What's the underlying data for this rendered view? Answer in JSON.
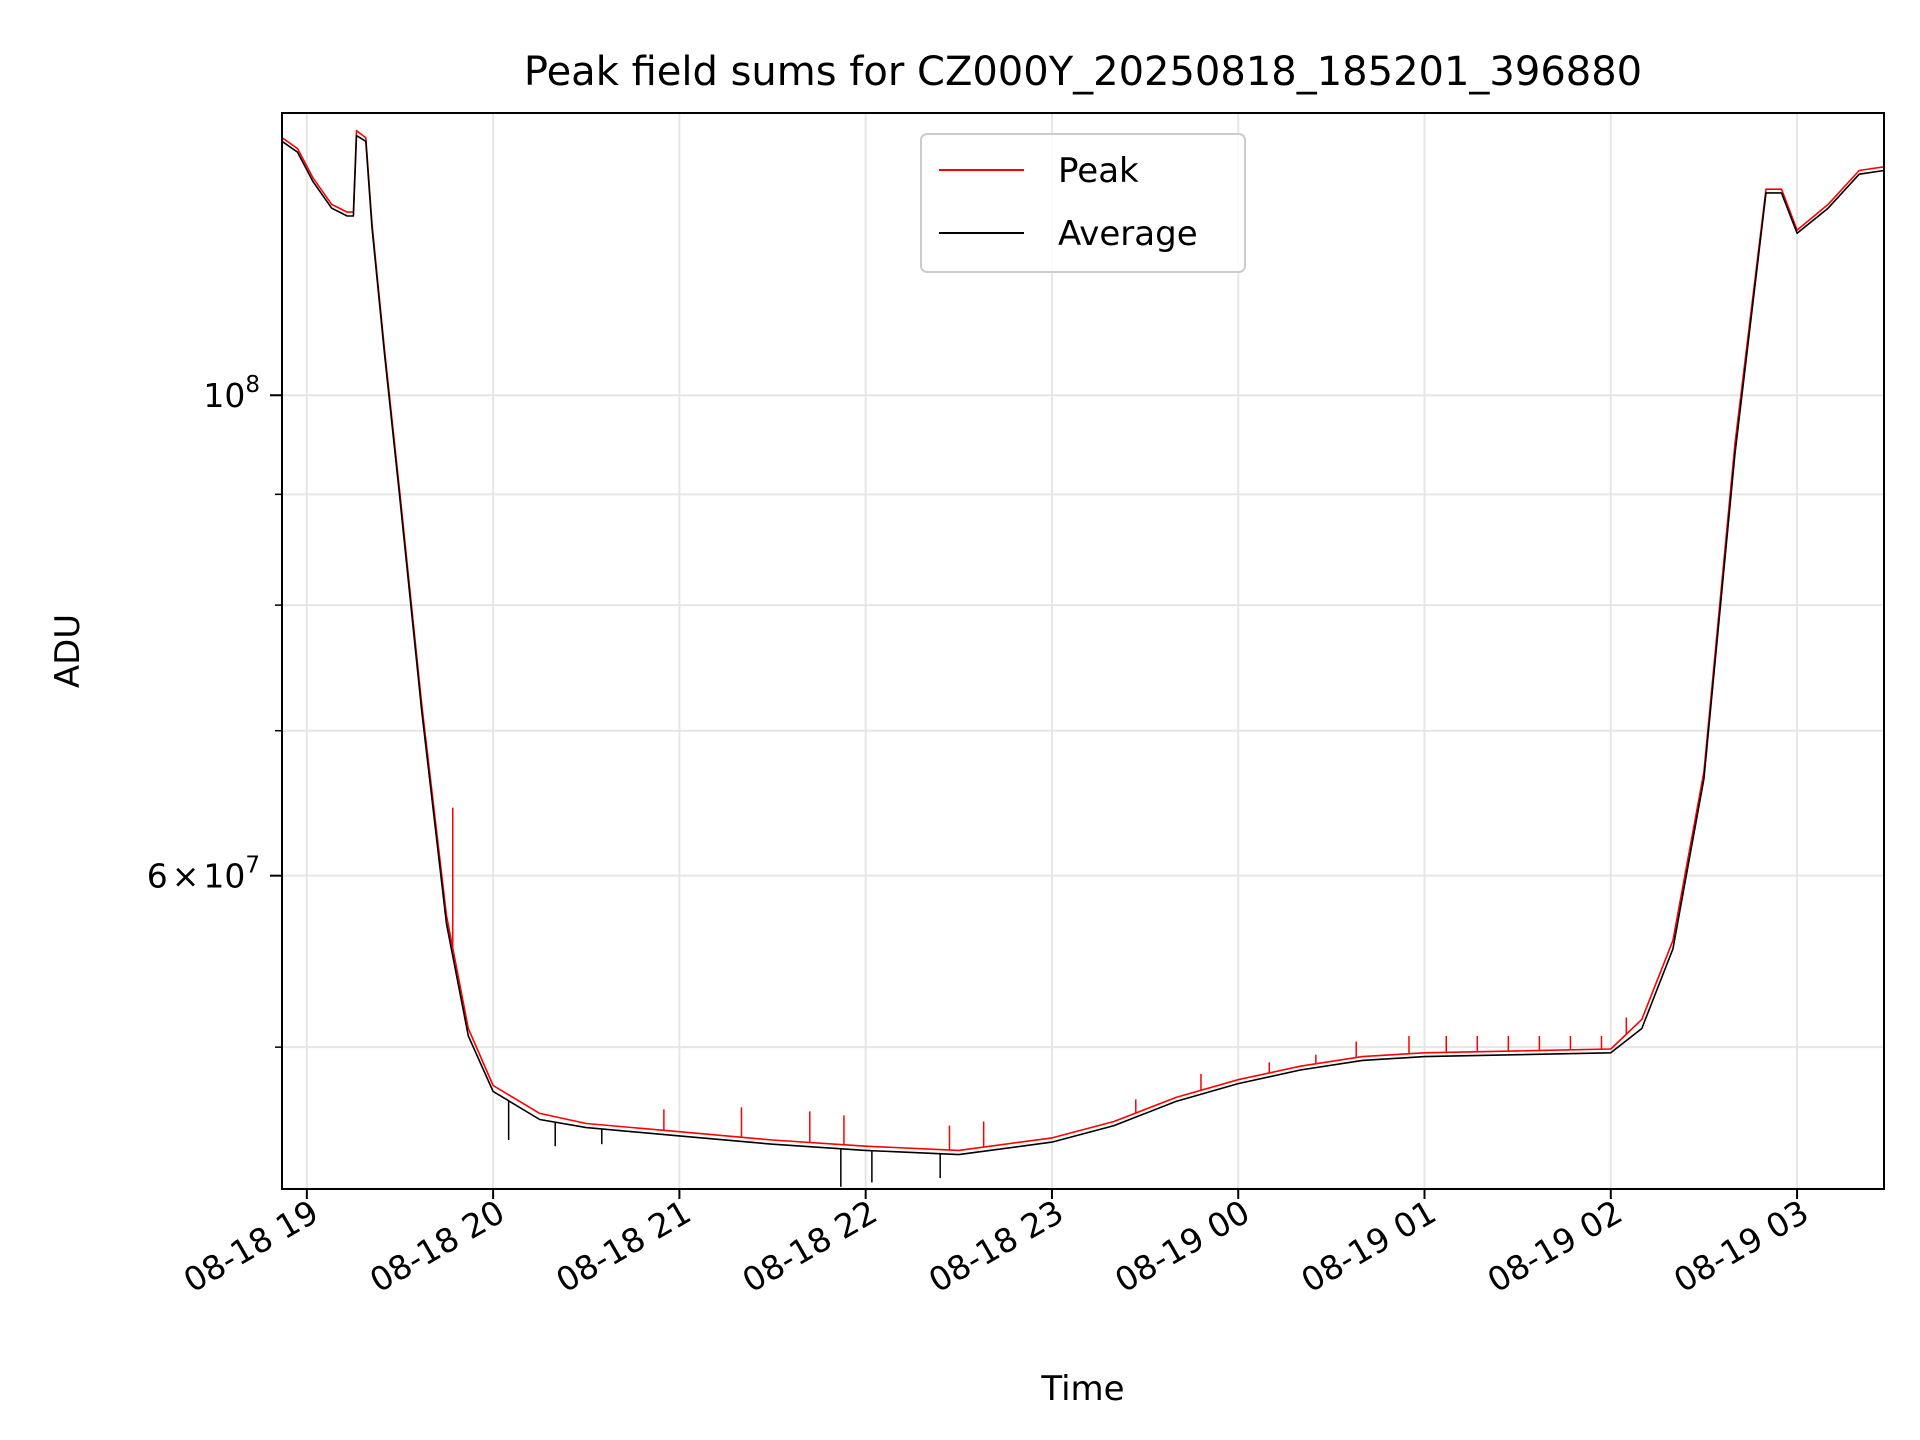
{
  "chart_data": {
    "type": "line",
    "title": "Peak field sums for CZ000Y_20250818_185201_396880",
    "xlabel": "Time",
    "ylabel": "ADU",
    "yscale": "log",
    "xlim": [
      "2025-08-18 18:52",
      "2025-08-19 03:28"
    ],
    "ylim": [
      43000000,
      135000000
    ],
    "x_ticks": [
      {
        "t": "2025-08-18 19:00",
        "label": "08-18 19"
      },
      {
        "t": "2025-08-18 20:00",
        "label": "08-18 20"
      },
      {
        "t": "2025-08-18 21:00",
        "label": "08-18 21"
      },
      {
        "t": "2025-08-18 22:00",
        "label": "08-18 22"
      },
      {
        "t": "2025-08-18 23:00",
        "label": "08-18 23"
      },
      {
        "t": "2025-08-19 00:00",
        "label": "08-19 00"
      },
      {
        "t": "2025-08-19 01:00",
        "label": "08-19 01"
      },
      {
        "t": "2025-08-19 02:00",
        "label": "08-19 02"
      },
      {
        "t": "2025-08-19 03:00",
        "label": "08-19 03"
      }
    ],
    "y_major_ticks": [
      {
        "value": 60000000,
        "label_coef": "6",
        "label_base": "10",
        "label_exp": "7",
        "label_times": "×"
      },
      {
        "value": 100000000,
        "label_coef": "",
        "label_base": "10",
        "label_exp": "8",
        "label_times": ""
      }
    ],
    "y_minor_ticks": [
      50000000,
      70000000,
      80000000,
      90000000
    ],
    "grid": true,
    "legend": "upper center",
    "series": [
      {
        "name": "Peak",
        "color": "#ff0000",
        "points": [
          [
            "2025-08-18 18:52",
            131500000
          ],
          [
            "2025-08-18 18:57",
            130000000
          ],
          [
            "2025-08-18 19:02",
            126000000
          ],
          [
            "2025-08-18 19:08",
            122500000
          ],
          [
            "2025-08-18 19:13",
            121500000
          ],
          [
            "2025-08-18 19:15",
            121500000
          ],
          [
            "2025-08-18 19:16",
            132500000
          ],
          [
            "2025-08-18 19:19",
            131500000
          ],
          [
            "2025-08-18 19:21",
            120000000
          ],
          [
            "2025-08-18 19:25",
            105000000
          ],
          [
            "2025-08-18 19:30",
            90000000
          ],
          [
            "2025-08-18 19:37",
            72000000
          ],
          [
            "2025-08-18 19:45",
            57500000
          ],
          [
            "2025-08-18 19:52",
            51000000
          ],
          [
            "2025-08-18 20:00",
            48000000
          ],
          [
            "2025-08-18 20:15",
            46600000
          ],
          [
            "2025-08-18 20:30",
            46100000
          ],
          [
            "2025-08-18 21:00",
            45700000
          ],
          [
            "2025-08-18 21:30",
            45300000
          ],
          [
            "2025-08-18 22:00",
            45000000
          ],
          [
            "2025-08-18 22:30",
            44800000
          ],
          [
            "2025-08-18 23:00",
            45400000
          ],
          [
            "2025-08-18 23:20",
            46200000
          ],
          [
            "2025-08-18 23:40",
            47400000
          ],
          [
            "2025-08-19 00:00",
            48300000
          ],
          [
            "2025-08-19 00:20",
            49000000
          ],
          [
            "2025-08-19 00:40",
            49500000
          ],
          [
            "2025-08-19 01:00",
            49700000
          ],
          [
            "2025-08-19 01:30",
            49800000
          ],
          [
            "2025-08-19 02:00",
            49900000
          ],
          [
            "2025-08-19 02:10",
            51500000
          ],
          [
            "2025-08-19 02:20",
            56000000
          ],
          [
            "2025-08-19 02:30",
            67000000
          ],
          [
            "2025-08-19 02:40",
            95000000
          ],
          [
            "2025-08-19 02:50",
            124500000
          ],
          [
            "2025-08-19 02:55",
            124500000
          ],
          [
            "2025-08-19 03:00",
            119200000
          ],
          [
            "2025-08-19 03:10",
            122500000
          ],
          [
            "2025-08-19 03:20",
            127000000
          ],
          [
            "2025-08-19 03:28",
            127500000
          ]
        ],
        "spikes": [
          [
            "2025-08-18 19:47",
            64500000
          ],
          [
            "2025-08-18 20:55",
            46800000
          ],
          [
            "2025-08-18 21:20",
            46900000
          ],
          [
            "2025-08-18 21:42",
            46700000
          ],
          [
            "2025-08-18 21:53",
            46500000
          ],
          [
            "2025-08-18 22:27",
            46000000
          ],
          [
            "2025-08-18 22:38",
            46200000
          ],
          [
            "2025-08-18 23:27",
            47300000
          ],
          [
            "2025-08-18 23:48",
            48600000
          ],
          [
            "2025-08-19 00:10",
            49200000
          ],
          [
            "2025-08-19 00:25",
            49600000
          ],
          [
            "2025-08-19 00:38",
            50300000
          ],
          [
            "2025-08-19 00:55",
            50600000
          ],
          [
            "2025-08-19 01:07",
            50600000
          ],
          [
            "2025-08-19 01:17",
            50600000
          ],
          [
            "2025-08-19 01:27",
            50600000
          ],
          [
            "2025-08-19 01:37",
            50600000
          ],
          [
            "2025-08-19 01:47",
            50600000
          ],
          [
            "2025-08-19 01:57",
            50600000
          ],
          [
            "2025-08-19 02:05",
            51600000
          ]
        ]
      },
      {
        "name": "Average",
        "color": "#000000",
        "points": [
          [
            "2025-08-18 18:52",
            131000000
          ],
          [
            "2025-08-18 18:57",
            129500000
          ],
          [
            "2025-08-18 19:02",
            125500000
          ],
          [
            "2025-08-18 19:08",
            122000000
          ],
          [
            "2025-08-18 19:13",
            121000000
          ],
          [
            "2025-08-18 19:15",
            121000000
          ],
          [
            "2025-08-18 19:16",
            131800000
          ],
          [
            "2025-08-18 19:19",
            131000000
          ],
          [
            "2025-08-18 19:21",
            119500000
          ],
          [
            "2025-08-18 19:25",
            104500000
          ],
          [
            "2025-08-18 19:30",
            89500000
          ],
          [
            "2025-08-18 19:37",
            71500000
          ],
          [
            "2025-08-18 19:45",
            57000000
          ],
          [
            "2025-08-18 19:52",
            50600000
          ],
          [
            "2025-08-18 20:00",
            47700000
          ],
          [
            "2025-08-18 20:15",
            46300000
          ],
          [
            "2025-08-18 20:30",
            45900000
          ],
          [
            "2025-08-18 21:00",
            45500000
          ],
          [
            "2025-08-18 21:30",
            45100000
          ],
          [
            "2025-08-18 22:00",
            44800000
          ],
          [
            "2025-08-18 22:30",
            44600000
          ],
          [
            "2025-08-18 23:00",
            45200000
          ],
          [
            "2025-08-18 23:20",
            46000000
          ],
          [
            "2025-08-18 23:40",
            47200000
          ],
          [
            "2025-08-19 00:00",
            48100000
          ],
          [
            "2025-08-19 00:20",
            48800000
          ],
          [
            "2025-08-19 00:40",
            49300000
          ],
          [
            "2025-08-19 01:00",
            49500000
          ],
          [
            "2025-08-19 01:30",
            49600000
          ],
          [
            "2025-08-19 02:00",
            49700000
          ],
          [
            "2025-08-19 02:10",
            51000000
          ],
          [
            "2025-08-19 02:20",
            55500000
          ],
          [
            "2025-08-19 02:30",
            66500000
          ],
          [
            "2025-08-19 02:40",
            94000000
          ],
          [
            "2025-08-19 02:50",
            124000000
          ],
          [
            "2025-08-19 02:55",
            124000000
          ],
          [
            "2025-08-19 03:00",
            118800000
          ],
          [
            "2025-08-19 03:10",
            122000000
          ],
          [
            "2025-08-19 03:20",
            126500000
          ],
          [
            "2025-08-19 03:28",
            127000000
          ]
        ],
        "dips": [
          [
            "2025-08-18 20:05",
            45300000
          ],
          [
            "2025-08-18 20:20",
            45000000
          ],
          [
            "2025-08-18 20:35",
            45100000
          ],
          [
            "2025-08-18 21:52",
            43100000
          ],
          [
            "2025-08-18 22:02",
            43300000
          ],
          [
            "2025-08-18 22:24",
            43500000
          ]
        ]
      }
    ]
  }
}
